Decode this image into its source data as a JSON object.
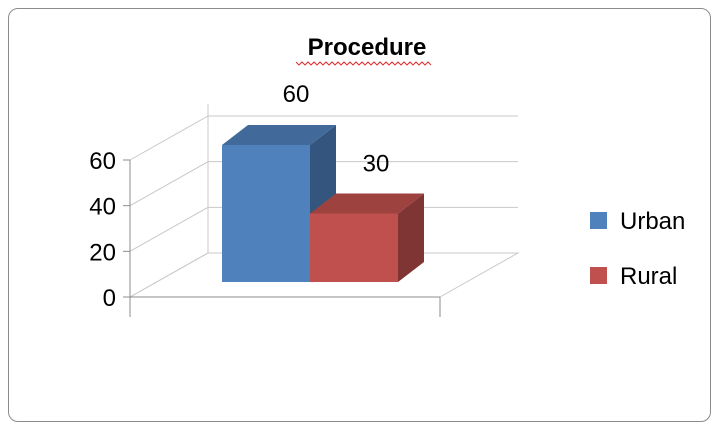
{
  "chart_data": {
    "type": "bar",
    "title": "Procedure",
    "categories": [
      ""
    ],
    "series": [
      {
        "name": "Urban",
        "values": [
          60
        ],
        "color": "#4F81BD"
      },
      {
        "name": "Rural",
        "values": [
          30
        ],
        "color": "#C0504D"
      }
    ],
    "data_labels": [
      "60",
      "30"
    ],
    "y_ticks": [
      "0",
      "20",
      "40",
      "60"
    ],
    "ylim": [
      0,
      60
    ],
    "grid": true,
    "legend": "right",
    "style": "3d"
  }
}
